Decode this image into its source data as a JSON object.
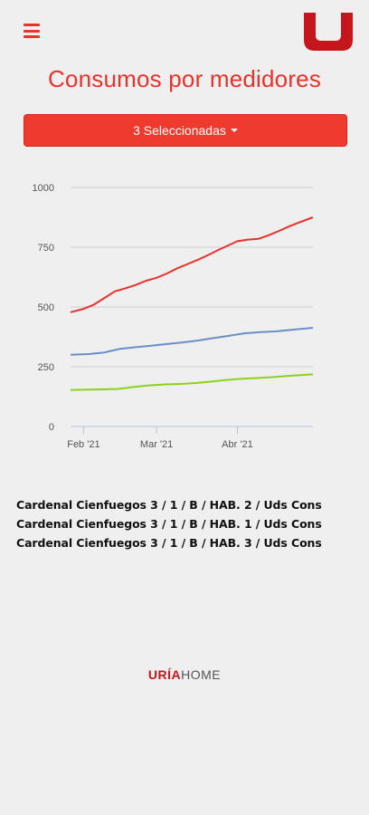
{
  "header": {
    "menu_icon": "hamburger-menu-icon",
    "logo_icon": "u-logo-icon",
    "accent_color": "#e8322b"
  },
  "page": {
    "title": "Consumos por medidores",
    "select_label": "3 Seleccionadas"
  },
  "chart_data": {
    "type": "line",
    "title": "",
    "xlabel": "",
    "ylabel": "",
    "ylim": [
      0,
      1000
    ],
    "yticks": [
      "0",
      "250",
      "500",
      "750",
      "1000"
    ],
    "x_ticks": [
      "Feb '21",
      "Mar '21",
      "Abr '21"
    ],
    "x_range": [
      "2021-01-27",
      "2021-04-30"
    ],
    "grid": true,
    "series": [
      {
        "color": "#e8322b",
        "points": [
          [
            "2021-01-27",
            478
          ],
          [
            "2021-02-01",
            492
          ],
          [
            "2021-02-05",
            510
          ],
          [
            "2021-02-09",
            538
          ],
          [
            "2021-02-13",
            565
          ],
          [
            "2021-02-17",
            578
          ],
          [
            "2021-02-21",
            592
          ],
          [
            "2021-02-25",
            610
          ],
          [
            "2021-03-01",
            622
          ],
          [
            "2021-03-05",
            640
          ],
          [
            "2021-03-09",
            662
          ],
          [
            "2021-03-13",
            680
          ],
          [
            "2021-03-17",
            698
          ],
          [
            "2021-03-21",
            718
          ],
          [
            "2021-03-25",
            740
          ],
          [
            "2021-03-29",
            760
          ],
          [
            "2021-04-01",
            775
          ],
          [
            "2021-04-05",
            782
          ],
          [
            "2021-04-09",
            785
          ],
          [
            "2021-04-13",
            800
          ],
          [
            "2021-04-17",
            818
          ],
          [
            "2021-04-21",
            838
          ],
          [
            "2021-04-25",
            855
          ],
          [
            "2021-04-30",
            875
          ]
        ]
      },
      {
        "color": "#6a8fc6",
        "points": [
          [
            "2021-01-27",
            300
          ],
          [
            "2021-02-03",
            303
          ],
          [
            "2021-02-09",
            310
          ],
          [
            "2021-02-15",
            325
          ],
          [
            "2021-02-21",
            332
          ],
          [
            "2021-02-27",
            338
          ],
          [
            "2021-03-05",
            345
          ],
          [
            "2021-03-11",
            352
          ],
          [
            "2021-03-17",
            360
          ],
          [
            "2021-03-23",
            370
          ],
          [
            "2021-03-29",
            380
          ],
          [
            "2021-04-04",
            390
          ],
          [
            "2021-04-10",
            395
          ],
          [
            "2021-04-16",
            398
          ],
          [
            "2021-04-22",
            405
          ],
          [
            "2021-04-30",
            413
          ]
        ]
      },
      {
        "color": "#8cd317",
        "points": [
          [
            "2021-01-27",
            153
          ],
          [
            "2021-02-05",
            155
          ],
          [
            "2021-02-14",
            157
          ],
          [
            "2021-02-20",
            165
          ],
          [
            "2021-02-26",
            172
          ],
          [
            "2021-03-04",
            176
          ],
          [
            "2021-03-10",
            178
          ],
          [
            "2021-03-16",
            182
          ],
          [
            "2021-03-22",
            188
          ],
          [
            "2021-03-28",
            195
          ],
          [
            "2021-04-03",
            200
          ],
          [
            "2021-04-09",
            203
          ],
          [
            "2021-04-15",
            207
          ],
          [
            "2021-04-21",
            212
          ],
          [
            "2021-04-30",
            218
          ]
        ]
      }
    ]
  },
  "legend": {
    "items": [
      "Cardenal Cienfuegos 3 / 1 / B / HAB. 2 / Uds Cons",
      "Cardenal Cienfuegos 3 / 1 / B / HAB. 1 / Uds Cons",
      "Cardenal Cienfuegos 3 / 1 / B / HAB. 3 / Uds Cons"
    ]
  },
  "brand": {
    "part1": "URÍA",
    "part2": "HOME"
  }
}
